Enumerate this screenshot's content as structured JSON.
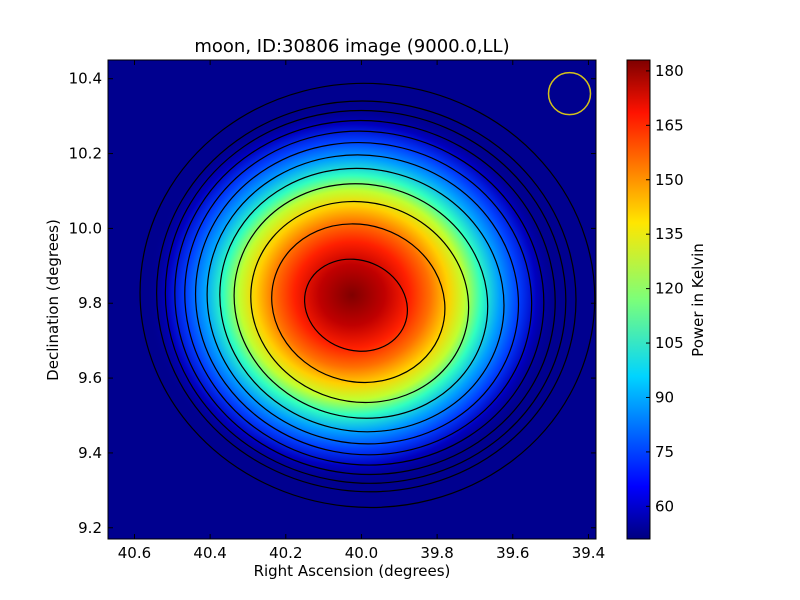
{
  "chart_data": {
    "type": "heatmap",
    "title": "moon, ID:30806 image (9000.0,LL)",
    "xlabel": "Right Ascension (degrees)",
    "ylabel": "Declination (degrees)",
    "xlim": [
      40.67,
      39.38
    ],
    "ylim": [
      9.17,
      10.45
    ],
    "x_inverted": true,
    "xticks": [
      40.6,
      40.4,
      40.2,
      40.0,
      39.8,
      39.6,
      39.4
    ],
    "xtick_labels": [
      "40.6",
      "40.4",
      "40.2",
      "40.0",
      "39.8",
      "39.6",
      "39.4"
    ],
    "yticks": [
      9.2,
      9.4,
      9.6,
      9.8,
      10.0,
      10.2,
      10.4
    ],
    "ytick_labels": [
      "9.2",
      "9.4",
      "9.6",
      "9.8",
      "10.0",
      "10.2",
      "10.4"
    ],
    "colormap": "jet",
    "colorbar": {
      "label": "Power in Kelvin",
      "range": [
        51,
        183
      ],
      "ticks": [
        60,
        75,
        90,
        105,
        120,
        135,
        150,
        165,
        180
      ],
      "tick_labels": [
        "60",
        "75",
        "90",
        "105",
        "120",
        "135",
        "150",
        "165",
        "180"
      ]
    },
    "peak": {
      "ra": 40.02,
      "dec": 9.79,
      "value": 183
    },
    "background_value": 51,
    "contour_levels": [
      60,
      80,
      90,
      100,
      110,
      120,
      130,
      140,
      150,
      160,
      170,
      180
    ],
    "beam_marker": {
      "ra": 39.45,
      "dec": 10.36,
      "shape": "circle",
      "color": "#d4c21a"
    },
    "grid": false
  }
}
